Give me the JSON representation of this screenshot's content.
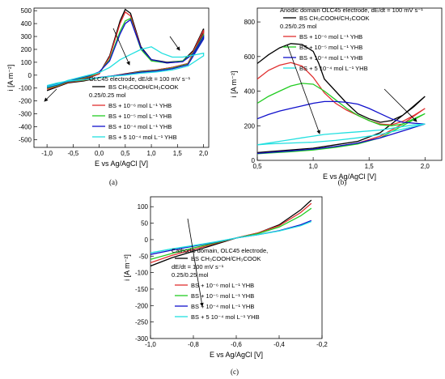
{
  "chart_data": [
    {
      "id": "a",
      "type": "line",
      "panel_label": "(a)",
      "ylabel": "i [A m⁻²]",
      "xlabel": "E vs Ag/AgCl [V]",
      "xlim": [
        -1.25,
        2.1
      ],
      "ylim": [
        -560,
        520
      ],
      "xticks": [
        -1.0,
        -0.5,
        0.0,
        0.5,
        1.0,
        1.5,
        2.0
      ],
      "xtick_labels": [
        "-1,0",
        "-0,5",
        "0,0",
        "0,5",
        "1,0",
        "1,5",
        "2,0"
      ],
      "yticks": [
        -500,
        -400,
        -300,
        -200,
        -100,
        0,
        100,
        200,
        300,
        400,
        500
      ],
      "ytick_labels": [
        "-500",
        "-400",
        "-300",
        "-200",
        "-100",
        "0",
        "100",
        "200",
        "300",
        "400",
        "500"
      ],
      "legend_title": [
        "OLC45 electrode, dE/dt = 100 mV s⁻¹",
        "0.25/0.25 mol"
      ],
      "series": [
        {
          "name": "BS CH₃COOH/CH₃COOK",
          "color": "#000000",
          "x": [
            -1.0,
            -0.8,
            -0.6,
            -0.4,
            -0.2,
            0.0,
            0.2,
            0.4,
            0.5,
            0.6,
            0.8,
            1.0,
            1.3,
            1.6,
            1.8,
            2.0,
            2.0,
            1.7,
            1.4,
            1.1,
            0.8,
            0.5,
            0.2,
            0.0,
            -0.3,
            -0.6,
            -0.8,
            -1.0
          ],
          "y": [
            -120,
            -90,
            -60,
            -40,
            -20,
            10,
            150,
            420,
            510,
            480,
            220,
            120,
            100,
            110,
            190,
            360,
            330,
            90,
            60,
            40,
            30,
            10,
            -10,
            -20,
            -45,
            -60,
            -80,
            -100
          ]
        },
        {
          "name": "BS + 10⁻⁶ mol L⁻¹ YHB",
          "color": "#e03030",
          "x": [
            -1.0,
            -0.8,
            -0.6,
            -0.4,
            -0.2,
            0.0,
            0.2,
            0.4,
            0.5,
            0.6,
            0.8,
            1.0,
            1.3,
            1.6,
            1.8,
            2.0,
            2.0,
            1.7,
            1.4,
            1.1,
            0.8,
            0.5,
            0.2,
            0.0,
            -0.3,
            -0.6,
            -0.8,
            -1.0
          ],
          "y": [
            -110,
            -85,
            -55,
            -35,
            -15,
            10,
            140,
            400,
            490,
            460,
            210,
            115,
            95,
            105,
            180,
            350,
            320,
            90,
            60,
            40,
            28,
            8,
            -10,
            -20,
            -40,
            -55,
            -75,
            -95
          ]
        },
        {
          "name": "BS + 10⁻⁵ mol L⁻¹ YHB",
          "color": "#22cc22",
          "x": [
            -1.0,
            -0.8,
            -0.6,
            -0.4,
            -0.2,
            0.0,
            0.2,
            0.4,
            0.5,
            0.6,
            0.8,
            1.0,
            1.3,
            1.6,
            1.8,
            2.0,
            2.0,
            1.7,
            1.4,
            1.1,
            0.8,
            0.5,
            0.2,
            0.0,
            -0.3,
            -0.6,
            -0.8,
            -1.0
          ],
          "y": [
            -100,
            -80,
            -50,
            -30,
            -10,
            20,
            120,
            340,
            420,
            440,
            200,
            110,
            95,
            110,
            170,
            310,
            290,
            85,
            55,
            35,
            25,
            5,
            -10,
            -20,
            -38,
            -50,
            -70,
            -90
          ]
        },
        {
          "name": "BS + 10⁻⁴ mol L⁻¹ YHB",
          "color": "#1010cc",
          "x": [
            -1.0,
            -0.8,
            -0.6,
            -0.4,
            -0.2,
            0.0,
            0.2,
            0.4,
            0.5,
            0.6,
            0.8,
            1.0,
            1.3,
            1.6,
            1.8,
            2.0,
            2.0,
            1.7,
            1.4,
            1.1,
            0.8,
            0.5,
            0.2,
            0.0,
            -0.3,
            -0.6,
            -0.8,
            -1.0
          ],
          "y": [
            -95,
            -75,
            -45,
            -25,
            -5,
            25,
            110,
            320,
            400,
            430,
            210,
            120,
            95,
            105,
            165,
            300,
            280,
            80,
            50,
            32,
            22,
            5,
            -8,
            -18,
            -35,
            -48,
            -65,
            -85
          ]
        },
        {
          "name": "BS + 5 10⁻⁴ mol L⁻¹ YHB",
          "color": "#22e0e0",
          "x": [
            -1.0,
            -0.8,
            -0.6,
            -0.4,
            -0.2,
            0.0,
            0.2,
            0.4,
            0.6,
            0.8,
            1.0,
            1.2,
            1.4,
            1.6,
            1.8,
            2.0,
            2.0,
            1.7,
            1.4,
            1.1,
            0.8,
            0.5,
            0.2,
            0.0,
            -0.3,
            -0.6,
            -0.8,
            -1.0
          ],
          "y": [
            -90,
            -70,
            -40,
            -20,
            0,
            20,
            60,
            120,
            160,
            200,
            220,
            170,
            140,
            140,
            155,
            170,
            150,
            70,
            40,
            25,
            15,
            0,
            -10,
            -20,
            -35,
            -45,
            -60,
            -80
          ]
        }
      ]
    },
    {
      "id": "b",
      "type": "line",
      "panel_label": "(b)",
      "ylabel": "i [A m⁻²]",
      "xlabel": "E vs Ag/AgCl [V]",
      "xlim": [
        0.5,
        2.15
      ],
      "ylim": [
        0,
        880
      ],
      "xticks": [
        0.5,
        1.0,
        1.5,
        2.0
      ],
      "xtick_labels": [
        "0,5",
        "1,0",
        "1,5",
        "2,0"
      ],
      "yticks": [
        0,
        200,
        400,
        600,
        800
      ],
      "ytick_labels": [
        "0",
        "200",
        "400",
        "600",
        "800"
      ],
      "legend_title": [
        "Anodic domain OLC45 electrode, dE/dt = 100 mV s⁻¹",
        "0.25/0.25 mol"
      ],
      "series": [
        {
          "name": "BS CH₃COOH/CH₃COOK",
          "color": "#000000",
          "x": [
            0.5,
            0.6,
            0.7,
            0.8,
            0.9,
            1.0,
            1.05,
            1.1,
            1.2,
            1.3,
            1.4,
            1.5,
            1.6,
            1.7,
            1.8,
            1.9,
            2.0,
            1.8,
            1.6,
            1.4,
            1.2,
            1.0,
            0.8,
            0.6,
            0.5
          ],
          "y": [
            560,
            610,
            650,
            675,
            670,
            630,
            560,
            470,
            400,
            330,
            270,
            240,
            220,
            230,
            260,
            310,
            370,
            260,
            160,
            110,
            90,
            70,
            60,
            50,
            45
          ]
        },
        {
          "name": "BS + 10⁻⁶ mol L⁻¹ YHB",
          "color": "#e03030",
          "x": [
            0.5,
            0.6,
            0.7,
            0.8,
            0.9,
            1.0,
            1.1,
            1.2,
            1.3,
            1.4,
            1.5,
            1.6,
            1.7,
            1.8,
            1.9,
            2.0,
            1.8,
            1.6,
            1.4,
            1.2,
            1.0,
            0.8,
            0.6,
            0.5
          ],
          "y": [
            470,
            520,
            550,
            565,
            545,
            480,
            390,
            330,
            290,
            260,
            230,
            210,
            205,
            225,
            260,
            300,
            210,
            140,
            100,
            80,
            65,
            55,
            45,
            40
          ]
        },
        {
          "name": "BS + 10⁻⁵ mol L⁻¹ YHB",
          "color": "#22cc22",
          "x": [
            0.5,
            0.6,
            0.7,
            0.8,
            0.9,
            1.0,
            1.1,
            1.2,
            1.3,
            1.4,
            1.5,
            1.6,
            1.7,
            1.8,
            1.9,
            2.0,
            1.8,
            1.6,
            1.4,
            1.2,
            1.0,
            0.8,
            0.6,
            0.5
          ],
          "y": [
            330,
            370,
            400,
            430,
            445,
            440,
            400,
            350,
            300,
            260,
            230,
            205,
            200,
            210,
            240,
            270,
            200,
            130,
            95,
            75,
            60,
            50,
            42,
            38
          ]
        },
        {
          "name": "BS + 10⁻⁴ mol L⁻¹ YHB",
          "color": "#1010cc",
          "x": [
            0.5,
            0.6,
            0.7,
            0.8,
            0.9,
            1.0,
            1.1,
            1.2,
            1.3,
            1.4,
            1.5,
            1.6,
            1.7,
            1.8,
            1.9,
            2.0,
            1.8,
            1.6,
            1.4,
            1.2,
            1.0,
            0.8,
            0.6,
            0.5
          ],
          "y": [
            240,
            265,
            285,
            300,
            315,
            330,
            340,
            340,
            335,
            325,
            300,
            270,
            240,
            220,
            215,
            210,
            170,
            130,
            100,
            80,
            65,
            55,
            45,
            40
          ]
        },
        {
          "name": "BS + 5 10⁻⁴ mol L⁻¹ YHB",
          "color": "#22e0e0",
          "x": [
            0.5,
            0.6,
            0.7,
            0.8,
            0.9,
            1.0,
            1.1,
            1.2,
            1.3,
            1.4,
            1.5,
            1.6,
            1.7,
            1.8,
            1.9,
            2.0,
            1.8,
            1.6,
            1.4,
            1.2,
            1.0,
            0.8,
            0.6,
            0.5
          ],
          "y": [
            90,
            100,
            110,
            120,
            130,
            140,
            150,
            155,
            160,
            165,
            170,
            175,
            185,
            195,
            205,
            210,
            180,
            150,
            130,
            115,
            105,
            100,
            95,
            90
          ]
        }
      ]
    },
    {
      "id": "c",
      "type": "line",
      "panel_label": "(c)",
      "ylabel": "i [A m⁻²]",
      "xlabel": "E vs Ag/AgCl [V]",
      "xlim": [
        -1.0,
        -0.2
      ],
      "ylim": [
        -300,
        130
      ],
      "xticks": [
        -1.0,
        -0.8,
        -0.6,
        -0.4,
        -0.2
      ],
      "xtick_labels": [
        "-1,0",
        "-0,8",
        "-0,6",
        "-0,4",
        "-0,2"
      ],
      "yticks": [
        -300,
        -250,
        -200,
        -150,
        -100,
        -50,
        0,
        50,
        100
      ],
      "ytick_labels": [
        "-300",
        "-250",
        "-200",
        "-150",
        "-100",
        "-50",
        "0",
        "50",
        "100"
      ],
      "legend_title": [
        "Cathodic domain, OLC45 electrode,",
        "dE/dt = 100 mV s⁻¹",
        "0.25/0.25 mol"
      ],
      "series": [
        {
          "name": "BS CH₃COOH/CH₃COOK",
          "color": "#000000",
          "x": [
            -1.0,
            -0.9,
            -0.8,
            -0.7,
            -0.6,
            -0.5,
            -0.4,
            -0.3,
            -0.25
          ],
          "y": [
            -80,
            -55,
            -35,
            -15,
            5,
            20,
            45,
            90,
            120
          ]
        },
        {
          "name": "BS + 10⁻⁶ mol L⁻¹ YHB",
          "color": "#e03030",
          "x": [
            -1.0,
            -0.9,
            -0.8,
            -0.7,
            -0.6,
            -0.5,
            -0.4,
            -0.3,
            -0.25
          ],
          "y": [
            -70,
            -48,
            -30,
            -12,
            5,
            20,
            42,
            82,
            110
          ]
        },
        {
          "name": "BS + 10⁻⁵ mol L⁻¹ YHB",
          "color": "#22cc22",
          "x": [
            -1.0,
            -0.9,
            -0.8,
            -0.7,
            -0.6,
            -0.5,
            -0.4,
            -0.3,
            -0.25
          ],
          "y": [
            -60,
            -42,
            -25,
            -10,
            5,
            18,
            38,
            72,
            95
          ]
        },
        {
          "name": "BS + 10⁻⁴ mol L⁻¹ YHB",
          "color": "#1010cc",
          "x": [
            -1.0,
            -0.9,
            -0.8,
            -0.7,
            -0.6,
            -0.5,
            -0.4,
            -0.3,
            -0.25
          ],
          "y": [
            -45,
            -32,
            -20,
            -8,
            5,
            15,
            27,
            45,
            58
          ]
        },
        {
          "name": "BS + 5 10⁻⁴ mol L⁻¹ YHB",
          "color": "#22e0e0",
          "x": [
            -1.0,
            -0.9,
            -0.8,
            -0.7,
            -0.6,
            -0.5,
            -0.4,
            -0.3,
            -0.25
          ],
          "y": [
            -40,
            -28,
            -18,
            -7,
            5,
            15,
            26,
            42,
            55
          ]
        }
      ]
    }
  ]
}
